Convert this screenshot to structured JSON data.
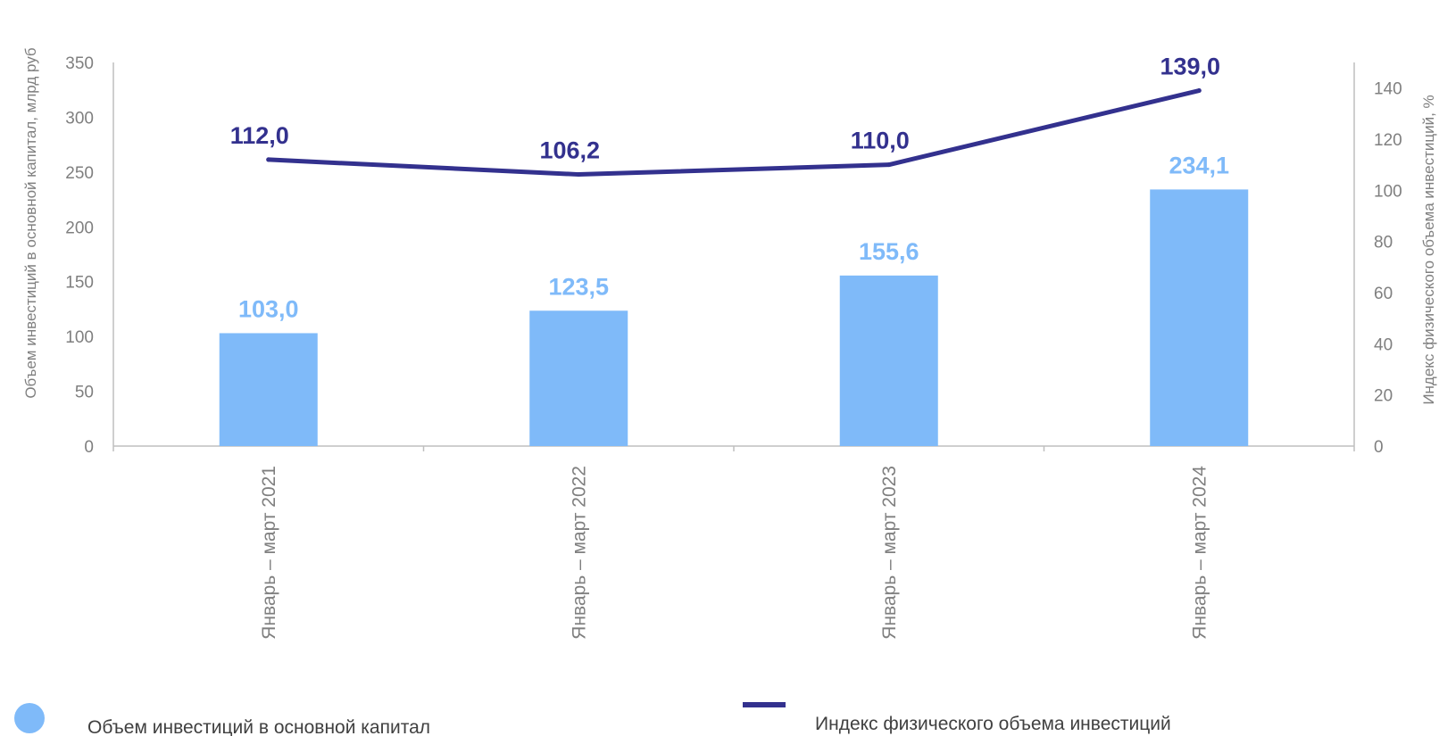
{
  "chart_data": {
    "type": "bar",
    "categories": [
      "Январь – март 2021",
      "Январь – март 2022",
      "Январь – март 2023",
      "Январь – март 2024"
    ],
    "series": [
      {
        "name": "Объем инвестиций в основной капитал",
        "type": "bar",
        "axis": "left",
        "values": [
          103.0,
          123.5,
          155.6,
          234.1
        ],
        "labels": [
          "103,0",
          "123,5",
          "155,6",
          "234,1"
        ],
        "color": "#7fbaf9"
      },
      {
        "name": "Индекс физического объема инвестиций",
        "type": "line",
        "axis": "right",
        "values": [
          112.0,
          106.2,
          110.0,
          139.0
        ],
        "labels": [
          "112,0",
          "106,2",
          "110,0",
          "139,0"
        ],
        "color": "#33318e"
      }
    ],
    "ylabel": "Объем инвестиций в основной капитал, млрд руб",
    "y2label": "Индекс физического объема инвестиций, %",
    "ylim": [
      0,
      350
    ],
    "yticks": [
      "0",
      "50",
      "100",
      "150",
      "200",
      "250",
      "300",
      "350"
    ],
    "y2lim": [
      0,
      150
    ],
    "y2ticks": [
      "0",
      "20",
      "40",
      "60",
      "80",
      "100",
      "120",
      "140"
    ],
    "grid": false,
    "legend_position": "bottom"
  }
}
